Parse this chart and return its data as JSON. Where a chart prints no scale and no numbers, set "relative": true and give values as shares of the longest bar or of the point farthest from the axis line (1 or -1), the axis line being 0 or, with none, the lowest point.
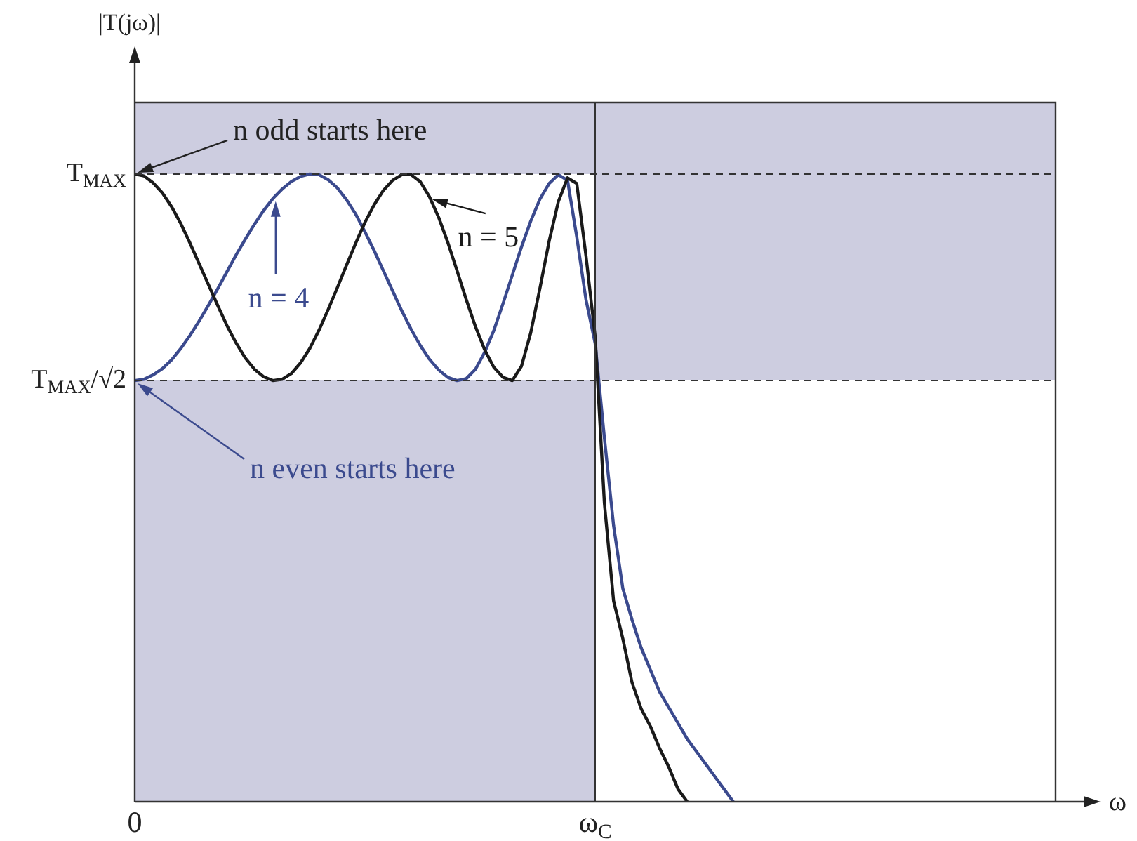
{
  "chart_data": {
    "type": "line",
    "relative": true,
    "xlabel": "ω",
    "marker": "none",
    "categories": [
      "0",
      null,
      null,
      null,
      null,
      null,
      null,
      null,
      null,
      null,
      null,
      null,
      null,
      null,
      null,
      null,
      null,
      null,
      null,
      null,
      null,
      null,
      null,
      null,
      null,
      null,
      null,
      null,
      null,
      null,
      null,
      null,
      null,
      null,
      null,
      null,
      null,
      null,
      null,
      null,
      null,
      null,
      null,
      null,
      null,
      null,
      null,
      null,
      null,
      null,
      "ω$_{C}$",
      null,
      null,
      null,
      null,
      null,
      null,
      null,
      null,
      null,
      null,
      null,
      null,
      null,
      null,
      null,
      null,
      null,
      null,
      null,
      null,
      null,
      null,
      null,
      null,
      null,
      null,
      null,
      null,
      null,
      null,
      null,
      null,
      null,
      null,
      null,
      null,
      null,
      null,
      null,
      null,
      null,
      null,
      null,
      null,
      null,
      null,
      null,
      null,
      null,
      null
    ],
    "series": [
      {
        "name": "n = 5",
        "color": "#1a1a1a",
        "values": [
          1,
          0.997,
          0.986,
          0.97,
          0.948,
          0.921,
          0.89,
          0.857,
          0.824,
          0.791,
          0.759,
          0.731,
          0.707,
          0.689,
          0.677,
          0.671,
          0.673,
          0.682,
          0.699,
          0.722,
          0.751,
          0.784,
          0.819,
          0.855,
          0.89,
          0.923,
          0.951,
          0.974,
          0.99,
          0.999,
          0.999,
          0.988,
          0.964,
          0.931,
          0.891,
          0.846,
          0.8,
          0.757,
          0.72,
          0.692,
          0.676,
          0.671,
          0.694,
          0.747,
          0.818,
          0.893,
          0.956,
          0.994,
          0.985,
          0.87,
          0.741,
          0.476,
          0.32,
          0.26,
          0.19,
          0.148,
          0.12,
          0.085,
          0.055,
          0.02,
          0,
          null,
          null,
          null,
          null,
          null,
          null,
          null,
          null,
          null,
          null,
          null,
          null,
          null,
          null,
          null,
          null,
          null,
          null,
          null,
          null,
          null,
          null,
          null,
          null,
          null,
          null,
          null,
          null,
          null,
          null,
          null,
          null,
          null,
          null,
          null,
          null,
          null,
          null,
          null,
          null
        ]
      },
      {
        "name": "n = 4",
        "color": "#3b4a8e",
        "values": [
          0.671,
          0.673,
          0.68,
          0.69,
          0.704,
          0.722,
          0.743,
          0.766,
          0.791,
          0.817,
          0.844,
          0.871,
          0.896,
          0.92,
          0.942,
          0.961,
          0.976,
          0.988,
          0.996,
          1,
          0.999,
          0.991,
          0.978,
          0.959,
          0.936,
          0.908,
          0.878,
          0.846,
          0.814,
          0.782,
          0.753,
          0.727,
          0.705,
          0.688,
          0.676,
          0.671,
          0.674,
          0.689,
          0.716,
          0.751,
          0.794,
          0.839,
          0.884,
          0.925,
          0.96,
          0.985,
          0.999,
          0.99,
          0.9,
          0.8,
          0.73,
          0.58,
          0.44,
          0.34,
          0.29,
          0.245,
          0.21,
          0.175,
          0.15,
          0.125,
          0.1,
          0.08,
          0.06,
          0.04,
          0.02,
          0,
          null,
          null,
          null,
          null,
          null,
          null,
          null,
          null,
          null,
          null,
          null,
          null,
          null,
          null,
          null,
          null,
          null,
          null,
          null,
          null,
          null,
          null,
          null,
          null,
          null,
          null,
          null,
          null,
          null,
          null,
          null,
          null,
          null,
          null,
          null
        ]
      }
    ],
    "ref_lines": [
      {
        "axis": "y",
        "value": 1,
        "label": "T$_{MAX}$",
        "line_style": "dashed",
        "color": "#333333"
      },
      {
        "axis": "y",
        "value": 0.671,
        "label": "T$_{MAX}$/√2",
        "line_style": "dashed",
        "color": "#333333"
      },
      {
        "axis": "x",
        "value": "ω$_{C}$",
        "line_style": "solid",
        "color": "#333333"
      }
    ],
    "annotations": [
      "n odd starts here",
      "n even starts here",
      "|T(jω)|"
    ]
  }
}
